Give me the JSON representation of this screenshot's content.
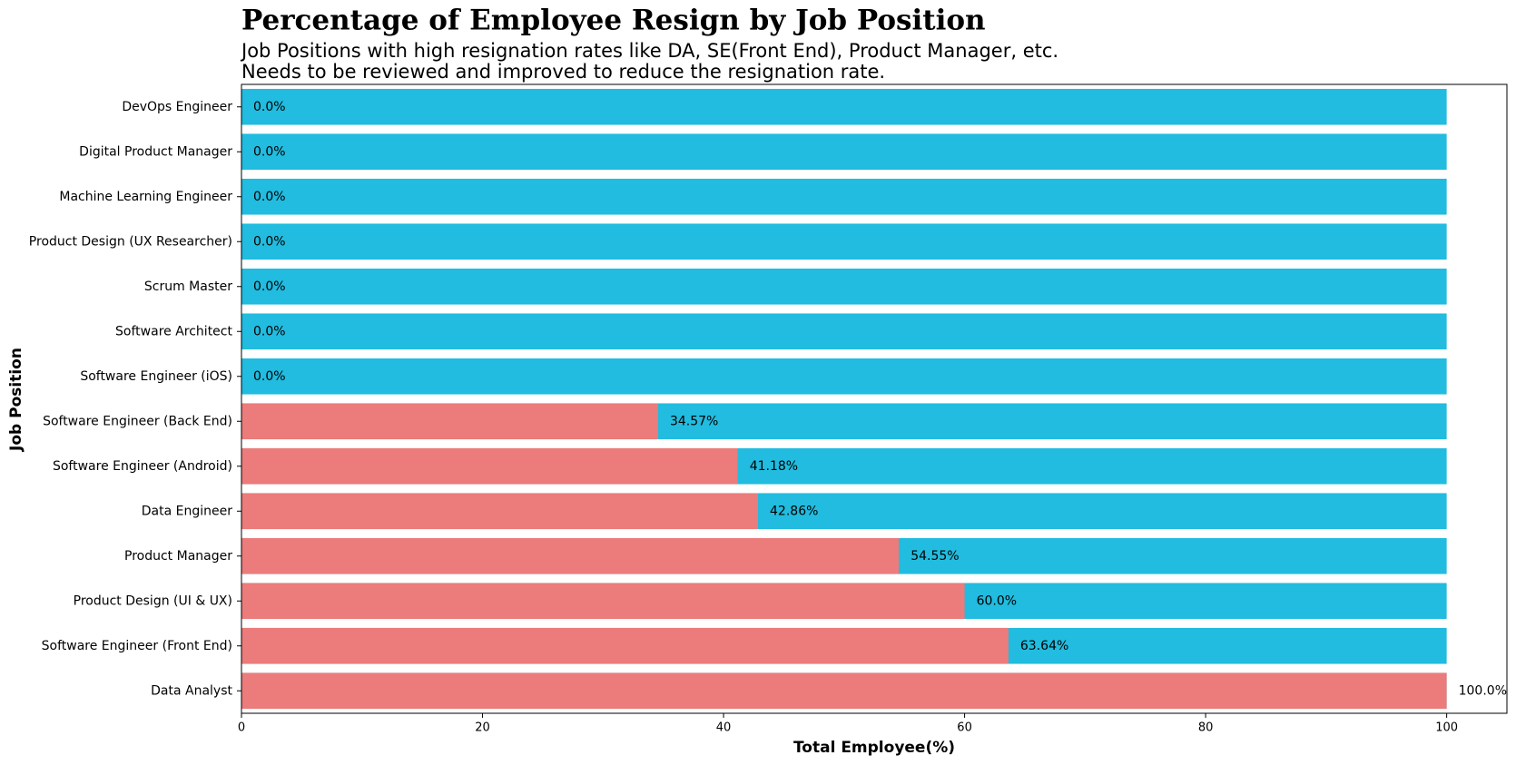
{
  "chart_data": {
    "type": "bar",
    "orientation": "horizontal",
    "title": "Percentage of Employee Resign by Job Position",
    "subtitle": [
      "Job Positions with high resignation rates like DA, SE(Front End), Product Manager, etc.",
      "Needs to be reviewed and improved to reduce the resignation rate."
    ],
    "x_label": "Total Employee(%)",
    "y_label": "Job Position",
    "categories": [
      "DevOps Engineer",
      "Digital Product Manager",
      "Machine Learning Engineer",
      "Product Design (UX Researcher)",
      "Scrum Master",
      "Software Architect",
      "Software Engineer (iOS)",
      "Software Engineer (Back End)",
      "Software Engineer (Android)",
      "Data Engineer",
      "Product Manager",
      "Product Design (UI & UX)",
      "Software Engineer (Front End)",
      "Data Analyst"
    ],
    "series": [
      {
        "color": "#21bcdf",
        "values": [
          100,
          100,
          100,
          100,
          100,
          100,
          100,
          100,
          100,
          100,
          100,
          100,
          100,
          100
        ]
      },
      {
        "color": "#eb7c7b",
        "values": [
          0,
          0,
          0,
          0,
          0,
          0,
          0,
          34.57,
          41.18,
          42.86,
          54.55,
          60,
          63.64,
          100
        ],
        "value_labels": [
          "0.0%",
          "0.0%",
          "0.0%",
          "0.0%",
          "0.0%",
          "0.0%",
          "0.0%",
          "34.57%",
          "41.18%",
          "42.86%",
          "54.55%",
          "60.0%",
          "63.64%",
          "100.0%"
        ]
      }
    ],
    "xlim": [
      0,
      105
    ],
    "xticks": [
      0,
      20,
      40,
      60,
      80,
      100
    ],
    "grid": false
  }
}
